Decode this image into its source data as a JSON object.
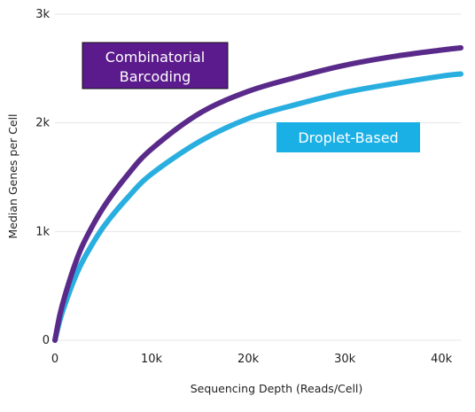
{
  "chart_data": {
    "type": "line",
    "title": "",
    "xlabel": "Sequencing Depth (Reads/Cell)",
    "ylabel": "Median Genes per Cell",
    "xlim": [
      0,
      42000
    ],
    "ylim": [
      0,
      3000
    ],
    "x_ticks": [
      0,
      10000,
      20000,
      30000,
      40000
    ],
    "x_tick_labels": [
      "0",
      "10k",
      "20k",
      "30k",
      "40k"
    ],
    "y_ticks": [
      0,
      1000,
      2000,
      3000
    ],
    "y_tick_labels": [
      "0",
      "1k",
      "2k",
      "3k"
    ],
    "grid": "horizontal",
    "legend": "none",
    "series": [
      {
        "name": "Combinatorial Barcoding",
        "color": "#5a2a8a",
        "label_bg": "#5b1b8c",
        "x": [
          0,
          500,
          1000,
          2000,
          3000,
          5000,
          7500,
          10000,
          15000,
          20000,
          25000,
          30000,
          35000,
          40000,
          42000
        ],
        "y": [
          0,
          230,
          400,
          680,
          900,
          1220,
          1520,
          1760,
          2090,
          2290,
          2420,
          2530,
          2610,
          2670,
          2690
        ]
      },
      {
        "name": "Droplet-Based",
        "color": "#29aee0",
        "label_bg": "#1ab0e6",
        "x": [
          0,
          500,
          1000,
          2000,
          3000,
          5000,
          7500,
          10000,
          15000,
          20000,
          25000,
          30000,
          35000,
          40000,
          42000
        ],
        "y": [
          0,
          180,
          320,
          560,
          750,
          1040,
          1310,
          1530,
          1830,
          2040,
          2170,
          2280,
          2360,
          2430,
          2450
        ]
      }
    ],
    "labels": [
      {
        "lines": [
          "Combinatorial",
          "Barcoding"
        ]
      },
      {
        "lines": [
          "Droplet-Based"
        ]
      }
    ]
  }
}
